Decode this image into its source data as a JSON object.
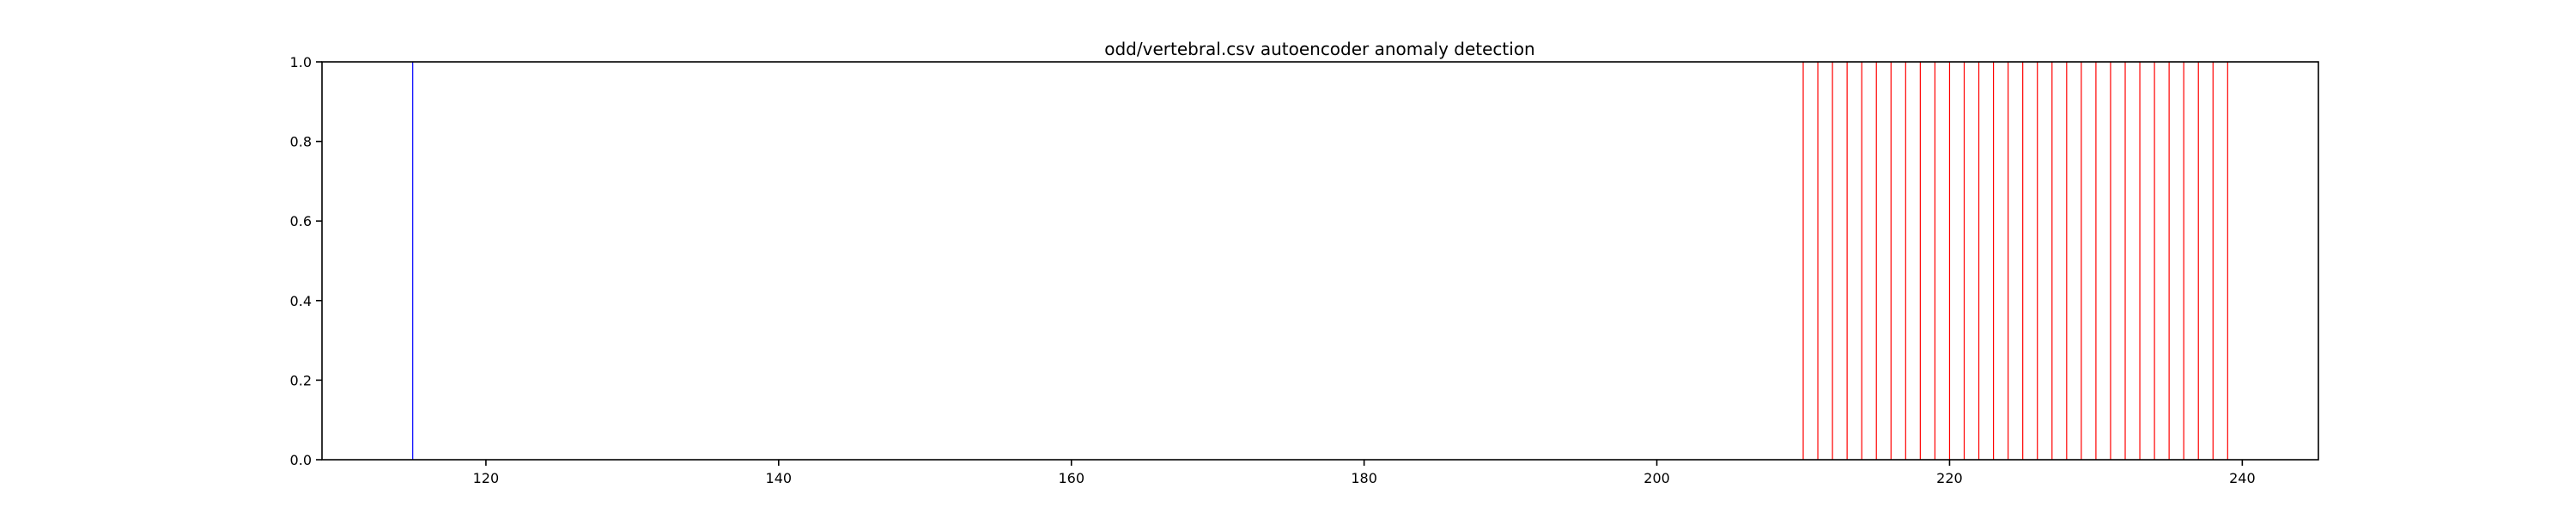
{
  "chart_data": {
    "type": "event-lines",
    "title": "odd/vertebral.csv autoencoder anomaly detection",
    "xlabel": "",
    "ylabel": "",
    "xlim": [
      108.8,
      245.2
    ],
    "ylim": [
      0.0,
      1.0
    ],
    "x_ticks": [
      {
        "value": 120,
        "label": "120"
      },
      {
        "value": 140,
        "label": "140"
      },
      {
        "value": 160,
        "label": "160"
      },
      {
        "value": 180,
        "label": "180"
      },
      {
        "value": 200,
        "label": "200"
      },
      {
        "value": 220,
        "label": "220"
      },
      {
        "value": 240,
        "label": "240"
      }
    ],
    "y_ticks": [
      {
        "value": 0.0,
        "label": "0.0"
      },
      {
        "value": 0.2,
        "label": "0.2"
      },
      {
        "value": 0.4,
        "label": "0.4"
      },
      {
        "value": 0.6,
        "label": "0.6"
      },
      {
        "value": 0.8,
        "label": "0.8"
      },
      {
        "value": 1.0,
        "label": "1.0"
      }
    ],
    "grid": false,
    "legend": "none",
    "series": [
      {
        "color": "#0000ff",
        "x": [
          115
        ]
      },
      {
        "color": "#ff0000",
        "x": [
          210,
          211,
          212,
          213,
          214,
          215,
          216,
          217,
          218,
          219,
          220,
          221,
          222,
          223,
          224,
          225,
          226,
          227,
          228,
          229,
          230,
          231,
          232,
          233,
          234,
          235,
          236,
          237,
          238,
          239
        ]
      }
    ]
  }
}
